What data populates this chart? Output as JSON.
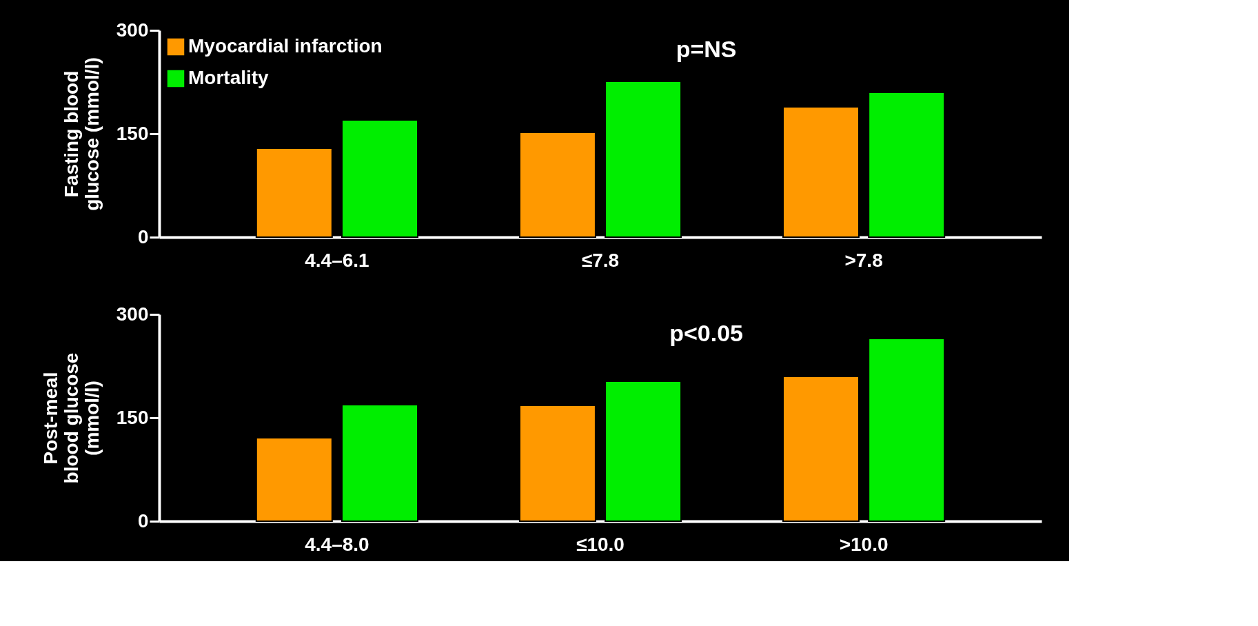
{
  "chart_data": [
    {
      "type": "bar",
      "ylabel": "Fasting blood\nglucose (mmol/l)",
      "categories": [
        "4.4–6.1",
        "≤7.8",
        ">7.8"
      ],
      "series": [
        {
          "name": "Myocardial infarction",
          "color": "#ff9900",
          "values": [
            129,
            152,
            189
          ]
        },
        {
          "name": "Mortality",
          "color": "#00ee00",
          "values": [
            170,
            226,
            210
          ]
        }
      ],
      "ylim": [
        0,
        300
      ],
      "yticks": [
        0,
        150,
        300
      ],
      "grid": false,
      "legend": "top left",
      "annotations": [
        "p=NS"
      ]
    },
    {
      "type": "bar",
      "ylabel": "Post-meal\nblood glucose\n(mmol/l)",
      "categories": [
        "4.4–8.0",
        "≤10.0",
        ">10.0"
      ],
      "series": [
        {
          "color": "#ff9900",
          "values": [
            121,
            168,
            210
          ]
        },
        {
          "color": "#00ee00",
          "values": [
            169,
            203,
            265
          ]
        }
      ],
      "ylim": [
        0,
        300
      ],
      "yticks": [
        0,
        150,
        300
      ],
      "grid": false,
      "legend": false,
      "annotations": [
        "p<0.05"
      ]
    }
  ]
}
